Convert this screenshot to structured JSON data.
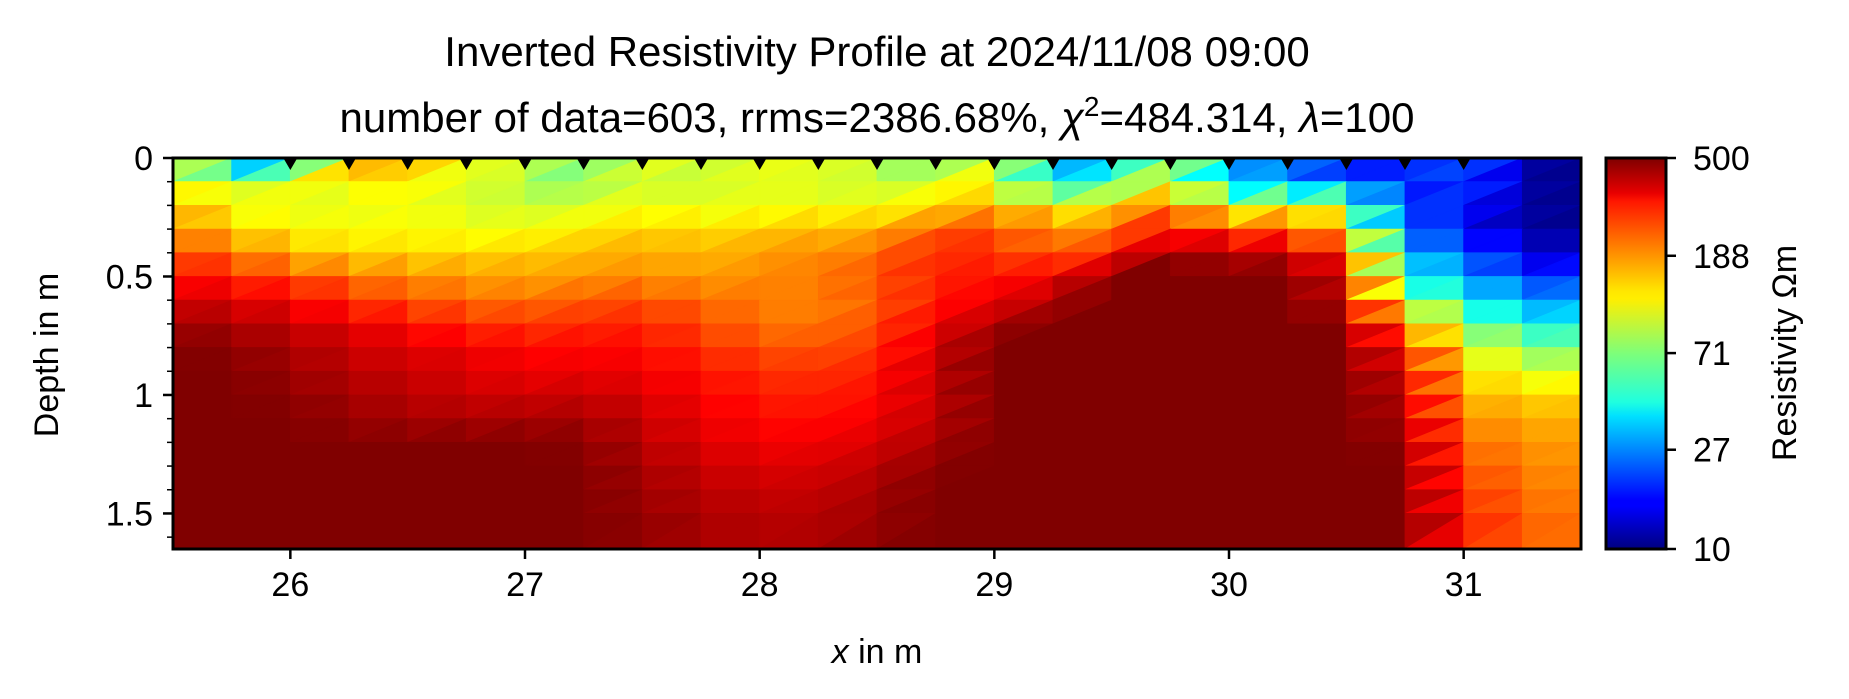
{
  "chart_data": {
    "type": "heatmap",
    "title": "Inverted Resistivity Profile at 2024/11/08 09:00",
    "subtitle": {
      "prefix": "number of data=603, rrms=2386.68%, ",
      "chi_symbol": "χ",
      "chi_superscript": "2",
      "chi_value": "=484.314, ",
      "lambda_symbol": "λ",
      "lambda_value": "=100"
    },
    "xlabel": {
      "italic": "x",
      "rest": " in m"
    },
    "ylabel": "Depth in m",
    "xlim": [
      25.5,
      31.5
    ],
    "ylim": [
      1.65,
      0
    ],
    "x_ticks": [
      26,
      27,
      28,
      29,
      30,
      31
    ],
    "x_tick_labels": [
      "26",
      "27",
      "28",
      "29",
      "30",
      "31"
    ],
    "y_ticks": [
      0,
      0.5,
      1,
      1.5
    ],
    "y_tick_labels": [
      "0",
      "0.5",
      "1",
      "1.5"
    ],
    "grid": false,
    "colormap": "jet",
    "color_scale": "log",
    "colorbar": {
      "label": "Resistivity Ωm",
      "range": [
        10,
        500
      ],
      "ticks": [
        10,
        27,
        71,
        188,
        500
      ],
      "tick_labels": [
        "10",
        "27",
        "71",
        "188",
        "500"
      ]
    },
    "electrodes_x": [
      26.0,
      26.25,
      26.5,
      26.75,
      27.0,
      27.25,
      27.5,
      27.75,
      28.0,
      28.25,
      28.5,
      28.75,
      29.0,
      29.25,
      29.5,
      29.75,
      30.0,
      30.25,
      30.5,
      30.75,
      31.0
    ],
    "resistivity_grid": {
      "x": [
        25.5,
        25.75,
        26.0,
        26.25,
        26.5,
        26.75,
        27.0,
        27.25,
        27.5,
        27.75,
        28.0,
        28.25,
        28.5,
        28.75,
        29.0,
        29.25,
        29.5,
        29.75,
        30.0,
        30.25,
        30.5,
        30.75,
        31.0,
        31.25,
        31.5
      ],
      "depth": [
        0,
        0.1,
        0.2,
        0.3,
        0.4,
        0.5,
        0.6,
        0.7,
        0.8,
        0.9,
        1.0,
        1.1,
        1.2,
        1.3,
        1.4,
        1.5,
        1.65
      ],
      "values": [
        [
          150,
          30,
          20,
          160,
          190,
          100,
          110,
          60,
          120,
          90,
          110,
          100,
          100,
          60,
          100,
          30,
          30,
          110,
          25,
          30,
          15,
          20,
          25,
          12,
          10
        ],
        [
          130,
          80,
          120,
          110,
          130,
          100,
          90,
          70,
          100,
          90,
          110,
          100,
          90,
          100,
          130,
          40,
          50,
          110,
          30,
          30,
          20,
          15,
          25,
          12,
          10
        ],
        [
          160,
          110,
          100,
          105,
          110,
          100,
          95,
          100,
          110,
          100,
          105,
          110,
          110,
          130,
          140,
          120,
          110,
          250,
          90,
          110,
          90,
          15,
          20,
          12,
          10
        ],
        [
          200,
          130,
          120,
          110,
          120,
          110,
          110,
          120,
          140,
          130,
          140,
          150,
          150,
          230,
          240,
          170,
          200,
          300,
          210,
          220,
          120,
          25,
          15,
          12,
          10
        ],
        [
          250,
          200,
          150,
          130,
          130,
          130,
          140,
          150,
          160,
          150,
          170,
          180,
          200,
          260,
          260,
          210,
          250,
          500,
          400,
          400,
          250,
          35,
          25,
          15,
          12
        ],
        [
          300,
          270,
          230,
          200,
          180,
          170,
          160,
          170,
          180,
          160,
          180,
          190,
          230,
          270,
          300,
          330,
          500,
          500,
          500,
          500,
          350,
          45,
          30,
          20,
          20
        ],
        [
          380,
          340,
          320,
          250,
          220,
          200,
          200,
          220,
          230,
          200,
          190,
          180,
          220,
          280,
          320,
          400,
          500,
          500,
          500,
          500,
          400,
          80,
          50,
          30,
          25
        ],
        [
          450,
          420,
          380,
          340,
          300,
          260,
          240,
          260,
          270,
          230,
          200,
          190,
          230,
          330,
          430,
          500,
          500,
          500,
          500,
          500,
          500,
          180,
          70,
          50,
          40
        ],
        [
          500,
          480,
          420,
          380,
          340,
          330,
          300,
          300,
          300,
          260,
          230,
          220,
          250,
          360,
          500,
          500,
          500,
          500,
          500,
          500,
          500,
          280,
          110,
          80,
          60
        ],
        [
          500,
          500,
          450,
          400,
          380,
          350,
          320,
          330,
          320,
          290,
          260,
          250,
          280,
          380,
          500,
          500,
          500,
          500,
          500,
          500,
          500,
          350,
          130,
          110,
          90
        ],
        [
          500,
          500,
          480,
          430,
          400,
          380,
          370,
          380,
          350,
          310,
          280,
          270,
          300,
          380,
          500,
          500,
          500,
          500,
          500,
          500,
          500,
          400,
          150,
          140,
          130
        ],
        [
          500,
          500,
          500,
          460,
          430,
          420,
          420,
          430,
          380,
          330,
          300,
          290,
          320,
          390,
          500,
          500,
          500,
          500,
          500,
          500,
          500,
          420,
          180,
          160,
          150
        ],
        [
          500,
          500,
          500,
          500,
          500,
          500,
          500,
          480,
          400,
          350,
          320,
          320,
          360,
          420,
          500,
          500,
          500,
          500,
          500,
          500,
          500,
          480,
          200,
          180,
          160
        ],
        [
          500,
          500,
          500,
          500,
          500,
          500,
          500,
          500,
          430,
          380,
          350,
          350,
          400,
          480,
          500,
          500,
          500,
          500,
          500,
          500,
          500,
          500,
          220,
          190,
          170
        ],
        [
          500,
          500,
          500,
          500,
          500,
          500,
          500,
          500,
          450,
          400,
          380,
          380,
          430,
          500,
          500,
          500,
          500,
          500,
          500,
          500,
          500,
          500,
          250,
          200,
          180
        ],
        [
          500,
          500,
          500,
          500,
          500,
          500,
          500,
          500,
          460,
          420,
          400,
          400,
          450,
          500,
          500,
          500,
          500,
          500,
          500,
          500,
          500,
          500,
          270,
          210,
          190
        ],
        [
          500,
          500,
          500,
          500,
          500,
          500,
          500,
          500,
          480,
          430,
          420,
          420,
          470,
          500,
          500,
          500,
          500,
          500,
          500,
          500,
          500,
          500,
          280,
          220,
          200
        ]
      ]
    }
  }
}
